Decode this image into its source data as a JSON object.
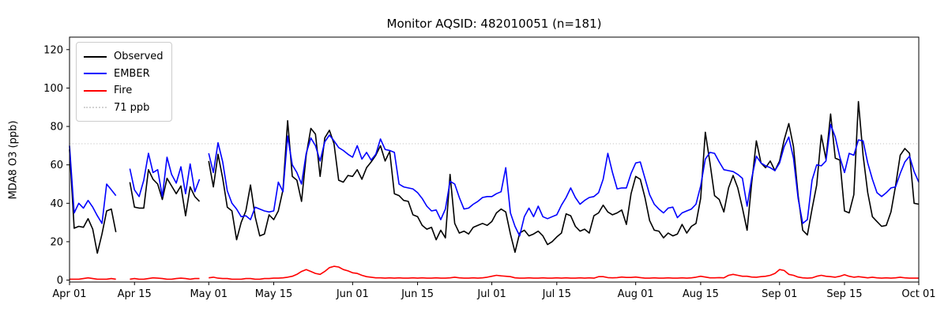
{
  "title": "Monitor AQSID: 482010051 (n=181)",
  "y_axis": {
    "label": "MDA8 O3 (ppb)",
    "ticks": [
      0,
      20,
      40,
      60,
      80,
      100,
      120
    ]
  },
  "x_axis": {
    "tick_labels": [
      "Apr 01",
      "Apr 15",
      "May 01",
      "May 15",
      "Jun 01",
      "Jun 15",
      "Jul 01",
      "Jul 15",
      "Aug 01",
      "Aug 15",
      "Sep 01",
      "Sep 15",
      "Oct 01"
    ],
    "tick_days": [
      0,
      14,
      30,
      44,
      61,
      75,
      91,
      105,
      122,
      136,
      153,
      167,
      183
    ]
  },
  "legend": {
    "items": [
      {
        "label": "Observed",
        "color": "#000000",
        "style": "solid"
      },
      {
        "label": "EMBER",
        "color": "#0000ff",
        "style": "solid"
      },
      {
        "label": "Fire",
        "color": "#ff0000",
        "style": "solid"
      },
      {
        "label": "71 ppb",
        "color": "#d3d3d3",
        "style": "dotted"
      }
    ]
  },
  "chart_data": {
    "type": "line",
    "title": "Monitor AQSID: 482010051 (n=181)",
    "xlabel": "",
    "ylabel": "MDA8 O3 (ppb)",
    "x_unit": "daily values; index 0 = Apr 01, index 183 = Oct 01; null = missing day",
    "xlim_days": [
      0,
      183
    ],
    "ylim": [
      -1,
      126.5
    ],
    "grid": false,
    "legend_position": "upper left",
    "threshold_line": {
      "value": 71,
      "label": "71 ppb",
      "color": "#d3d3d3",
      "style": "dotted"
    },
    "n_label": 181,
    "series": [
      {
        "name": "Observed",
        "color": "#000000",
        "values": [
          68,
          27,
          28,
          27.5,
          32,
          26.5,
          14,
          24,
          36,
          37,
          25,
          null,
          null,
          51,
          38,
          37.5,
          37.5,
          57.5,
          52.5,
          50,
          42,
          53,
          49,
          45,
          49,
          33.5,
          48.5,
          43.5,
          41,
          null,
          62,
          48.5,
          65.5,
          53,
          38,
          36,
          21,
          30,
          36,
          49.5,
          33,
          23,
          24,
          34,
          31.5,
          36,
          47,
          83,
          54,
          52,
          41,
          65,
          79,
          76,
          54,
          74,
          78,
          71,
          52,
          51,
          54.5,
          54,
          57.5,
          52.5,
          58.5,
          61.5,
          65,
          70,
          62,
          67,
          45,
          44,
          41.5,
          41,
          34,
          33,
          28.5,
          26.5,
          27.5,
          21,
          26,
          22,
          55,
          29.5,
          24.5,
          25.5,
          24,
          27.5,
          28.5,
          29.5,
          28.5,
          30.5,
          35,
          37,
          35.5,
          24,
          14.5,
          24.5,
          26,
          23,
          24,
          25.5,
          23,
          18.5,
          20,
          22.5,
          24.5,
          34.5,
          33.5,
          28,
          25.5,
          26.5,
          24.5,
          33.5,
          35,
          39,
          35.5,
          34,
          35,
          36.5,
          29,
          45,
          54,
          52.5,
          43,
          31,
          26,
          25.5,
          22,
          24.5,
          23,
          24,
          29,
          24.5,
          28,
          29.5,
          42.5,
          77,
          61,
          44,
          42,
          35.5,
          48,
          54.5,
          48,
          37.5,
          26,
          50.5,
          72.5,
          61,
          58.5,
          62,
          57,
          62,
          73,
          81.5,
          69.5,
          44,
          26,
          23.5,
          37,
          49.5,
          75.5,
          63,
          86.5,
          63.5,
          62.5,
          36,
          35,
          44.5,
          93,
          65,
          45.5,
          33,
          30.5,
          28,
          28.5,
          35.5,
          49,
          65,
          68.5,
          66,
          40,
          39.5
        ]
      },
      {
        "name": "EMBER",
        "color": "#0000ff",
        "values": [
          70,
          35,
          40,
          37.5,
          41.5,
          38,
          33.5,
          29.5,
          50,
          47,
          44,
          null,
          null,
          58,
          47,
          43.5,
          52,
          66,
          56,
          57.5,
          43.5,
          64,
          55,
          50.5,
          59,
          45,
          60.5,
          46,
          52.5,
          null,
          66,
          56,
          71.5,
          61.5,
          46.5,
          40,
          37,
          33,
          33.5,
          31.5,
          38,
          37,
          36,
          35.5,
          36,
          51,
          46,
          75,
          60,
          56,
          50,
          66,
          74,
          70,
          62,
          72,
          75.5,
          72.5,
          69,
          67.5,
          65.5,
          64,
          70,
          63,
          66.5,
          62.5,
          65.5,
          73.5,
          68,
          67.5,
          66.5,
          50,
          48.5,
          48,
          47.5,
          45.5,
          42.5,
          38.5,
          36,
          36.5,
          31.5,
          37,
          51.5,
          50,
          43,
          37,
          37.5,
          39.5,
          41,
          43,
          43.5,
          43.5,
          45,
          46,
          58.5,
          35,
          28,
          23,
          33,
          37.5,
          33,
          38.5,
          33,
          32,
          33,
          34,
          39,
          43,
          48,
          43,
          39.5,
          41.5,
          43,
          43.5,
          45.5,
          52.5,
          66,
          56,
          47.5,
          48,
          48,
          55.5,
          61,
          61.5,
          53,
          44.5,
          39.5,
          37,
          35,
          37.5,
          38,
          32.5,
          35,
          36,
          37,
          39.5,
          49,
          63,
          66.5,
          66,
          61.5,
          57.5,
          57,
          56.5,
          55,
          53,
          38.5,
          53,
          64.5,
          61,
          59.5,
          58.5,
          57,
          61,
          69.5,
          74.5,
          63.5,
          42.5,
          29.5,
          31.5,
          52,
          60,
          59.5,
          62,
          81,
          74.5,
          64,
          56,
          66,
          65,
          73,
          72.5,
          61,
          52.5,
          45.5,
          43.5,
          45.5,
          48,
          48.5,
          55.5,
          61.5,
          64.5,
          56.5,
          51
        ]
      },
      {
        "name": "Fire",
        "color": "#ff0000",
        "values": [
          0.5,
          0.5,
          0.5,
          0.8,
          1.2,
          0.8,
          0.5,
          0.5,
          0.5,
          0.8,
          0.5,
          null,
          null,
          0.5,
          0.8,
          0.5,
          0.5,
          0.8,
          1.2,
          1,
          0.8,
          0.5,
          0.5,
          0.8,
          1,
          0.8,
          0.5,
          0.8,
          0.8,
          null,
          1.2,
          1.5,
          1,
          0.8,
          0.8,
          0.5,
          0.5,
          0.5,
          0.8,
          0.8,
          0.5,
          0.5,
          0.8,
          0.8,
          1,
          1,
          1.2,
          1.5,
          2,
          3,
          4.5,
          5.5,
          4.5,
          3.5,
          3,
          4.5,
          6.5,
          7.2,
          6.8,
          5.5,
          4.8,
          3.8,
          3.5,
          2.5,
          1.8,
          1.5,
          1.2,
          1.2,
          1,
          1.2,
          1,
          1.2,
          1,
          1,
          1.2,
          1,
          1.2,
          1,
          1,
          1.2,
          1,
          1,
          1.2,
          1.5,
          1.2,
          1,
          1,
          1.2,
          1,
          1.2,
          1.5,
          2,
          2.5,
          2.2,
          2,
          1.8,
          1.2,
          1,
          1,
          1.2,
          1,
          1,
          1.2,
          1,
          1,
          1.2,
          1,
          1.2,
          1,
          1,
          1.2,
          1,
          1.2,
          1,
          1.8,
          1.8,
          1.3,
          1.2,
          1.3,
          1.6,
          1.4,
          1.4,
          1.6,
          1.3,
          1,
          1,
          1.2,
          1,
          1,
          1.2,
          1,
          1,
          1.2,
          1,
          1.2,
          1.5,
          2,
          1.6,
          1.2,
          1.2,
          1.3,
          1.2,
          2.5,
          3,
          2.5,
          2,
          2,
          1.6,
          1.5,
          1.8,
          2,
          2.5,
          3.5,
          5.5,
          5,
          3,
          2.5,
          1.6,
          1.2,
          1,
          1.2,
          2,
          2.5,
          2,
          1.8,
          1.5,
          2,
          2.8,
          2,
          1.5,
          1.8,
          1.5,
          1.2,
          1.5,
          1.2,
          1,
          1.2,
          1,
          1.2,
          1.5,
          1.2,
          1,
          1,
          1
        ]
      }
    ]
  }
}
